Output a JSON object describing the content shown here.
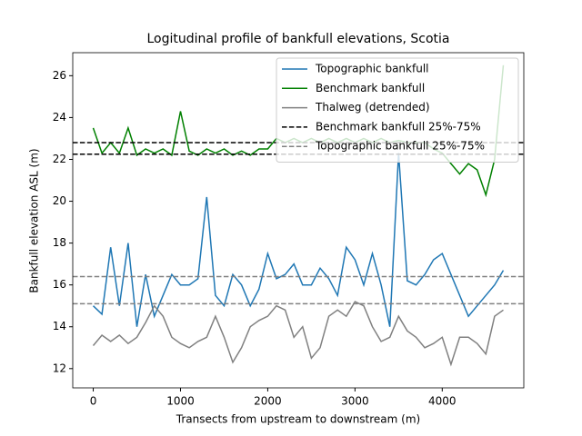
{
  "chart_data": {
    "type": "line",
    "title": "Logitudinal profile of bankfull elevations, Scotia",
    "x_label": "Transects from upstream to downstream (m)",
    "y_label": "Bankfull elevation ASL (m)",
    "x": [
      0,
      100,
      200,
      300,
      400,
      500,
      600,
      700,
      800,
      900,
      1000,
      1100,
      1200,
      1300,
      1400,
      1500,
      1600,
      1700,
      1800,
      1900,
      2000,
      2100,
      2200,
      2300,
      2400,
      2500,
      2600,
      2700,
      2800,
      2900,
      3000,
      3100,
      3200,
      3300,
      3400,
      3500,
      3600,
      3700,
      3800,
      3900,
      4000,
      4100,
      4200,
      4300,
      4400,
      4500,
      4600,
      4700
    ],
    "series": [
      {
        "name": "Topographic bankfull",
        "color": "#1f77b4",
        "values": [
          15.0,
          14.6,
          17.8,
          15.0,
          18.0,
          14.0,
          16.5,
          14.5,
          15.5,
          16.5,
          16.0,
          16.0,
          16.3,
          20.2,
          15.5,
          15.0,
          16.5,
          16.0,
          15.0,
          15.8,
          17.5,
          16.3,
          16.5,
          17.0,
          16.0,
          16.0,
          16.8,
          16.3,
          15.5,
          17.8,
          17.2,
          16.0,
          17.5,
          16.0,
          14.0,
          22.3,
          16.2,
          16.0,
          16.5,
          17.2,
          17.5,
          16.5,
          15.5,
          14.5,
          15.0,
          15.5,
          16.0,
          16.7
        ]
      },
      {
        "name": "Benchmark bankfull",
        "color": "#008000",
        "values": [
          23.5,
          22.3,
          22.8,
          22.3,
          23.5,
          22.2,
          22.5,
          22.3,
          22.5,
          22.2,
          24.3,
          22.4,
          22.2,
          22.5,
          22.3,
          22.5,
          22.2,
          22.4,
          22.2,
          22.5,
          22.5,
          23.0,
          22.8,
          23.0,
          22.8,
          23.0,
          22.8,
          23.0,
          22.8,
          23.0,
          22.8,
          23.0,
          22.8,
          23.0,
          22.8,
          22.9,
          22.8,
          22.8,
          22.8,
          22.5,
          22.3,
          21.8,
          21.3,
          21.8,
          21.5,
          20.3,
          22.0,
          26.5
        ]
      },
      {
        "name": "Thalweg (detrended)",
        "color": "#808080",
        "values": [
          13.1,
          13.6,
          13.3,
          13.6,
          13.2,
          13.5,
          14.2,
          15.0,
          14.5,
          13.5,
          13.2,
          13.0,
          13.3,
          13.5,
          14.5,
          13.5,
          12.3,
          13.0,
          14.0,
          14.3,
          14.5,
          15.0,
          14.8,
          13.5,
          14.0,
          12.5,
          13.0,
          14.5,
          14.8,
          14.5,
          15.2,
          15.0,
          14.0,
          13.3,
          13.5,
          14.5,
          13.8,
          13.5,
          13.0,
          13.2,
          13.5,
          12.2,
          13.5,
          13.5,
          13.2,
          12.7,
          14.5,
          14.8
        ]
      }
    ],
    "reference_lines": [
      {
        "name": "Benchmark bankfull 25%-75%",
        "color": "#000000",
        "values": [
          22.25,
          22.8
        ]
      },
      {
        "name": "Topographic bankfull 25%-75%",
        "color": "#808080",
        "values": [
          15.1,
          16.4
        ]
      }
    ],
    "xlim": [
      -235,
      4935
    ],
    "ylim": [
      11.08,
      27.1
    ],
    "xticks": [
      0,
      1000,
      2000,
      3000,
      4000
    ],
    "yticks": [
      12,
      14,
      16,
      18,
      20,
      22,
      24,
      26
    ],
    "legend": "upper right"
  }
}
